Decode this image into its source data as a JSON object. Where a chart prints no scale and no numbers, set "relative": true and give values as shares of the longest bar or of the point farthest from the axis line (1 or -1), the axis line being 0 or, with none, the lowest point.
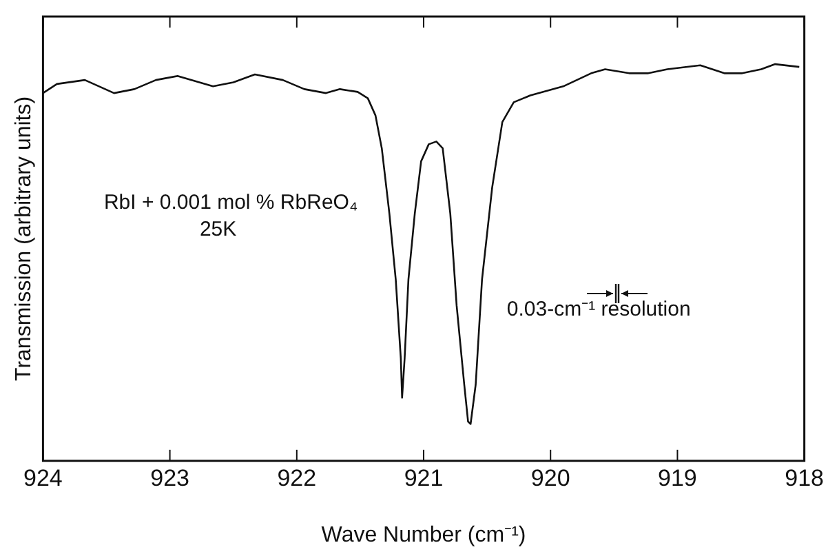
{
  "chart_data": {
    "type": "line",
    "xlabel": "Wave Number (cm⁻¹)",
    "ylabel": "Transmission (arbitrary units)",
    "relative": true,
    "xlim": [
      924,
      918
    ],
    "xticks": [
      924,
      923,
      922,
      921,
      920,
      919,
      918
    ],
    "grid": false,
    "legend": false,
    "marker": "none",
    "line_style": "solid",
    "annotations": [
      "RbI + 0.001 mol % RbReO₄",
      "25K",
      "0.03-cm⁻¹ resolution"
    ],
    "series": [
      {
        "color": "#111111",
        "x": [
          924,
          923.89,
          923.67,
          923.44,
          923.28,
          923.11,
          922.94,
          922.66,
          922.5,
          922.33,
          922.11,
          921.94,
          921.77,
          921.66,
          921.52,
          921.44,
          921.38,
          921.33,
          921.27,
          921.22,
          921.18,
          921.17,
          921.15,
          921.12,
          921.07,
          921.02,
          920.96,
          920.9,
          920.85,
          920.79,
          920.74,
          920.68,
          920.65,
          920.63,
          920.59,
          920.54,
          920.46,
          920.38,
          920.29,
          920.16,
          919.9,
          919.68,
          919.57,
          919.38,
          919.23,
          919.08,
          918.82,
          918.63,
          918.49,
          918.34,
          918.23,
          918.04
        ],
        "values": [
          0.927,
          0.95,
          0.96,
          0.927,
          0.937,
          0.96,
          0.97,
          0.944,
          0.954,
          0.974,
          0.96,
          0.937,
          0.927,
          0.937,
          0.93,
          0.914,
          0.871,
          0.788,
          0.623,
          0.457,
          0.258,
          0.159,
          0.258,
          0.457,
          0.623,
          0.755,
          0.798,
          0.805,
          0.788,
          0.623,
          0.391,
          0.192,
          0.099,
          0.093,
          0.192,
          0.457,
          0.689,
          0.854,
          0.904,
          0.921,
          0.944,
          0.977,
          0.987,
          0.977,
          0.977,
          0.987,
          0.997,
          0.977,
          0.977,
          0.987,
          1,
          0.993
        ]
      }
    ]
  }
}
